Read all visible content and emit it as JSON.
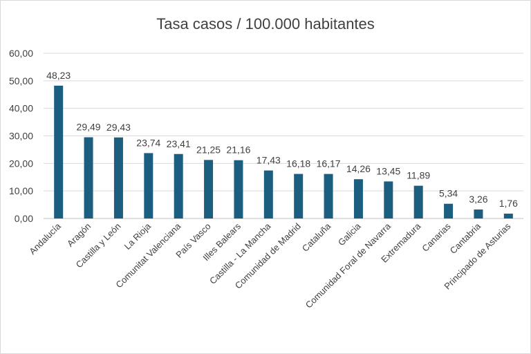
{
  "chart_data": {
    "type": "bar",
    "title": "Tasa casos / 100.000 habitantes",
    "categories": [
      "Andalucía",
      "Aragón",
      "Castilla y León",
      "La Rioja",
      "Comunitat Valenciana",
      "País Vasco",
      "Illes Balears",
      "Castilla - La Mancha",
      "Comunidad de Madrid",
      "Cataluña",
      "Galicia",
      "Comunidad Foral de Navarra",
      "Extremadura",
      "Canarias",
      "Cantabria",
      "Principado de Asturias"
    ],
    "values": [
      48.23,
      29.49,
      29.43,
      23.74,
      23.41,
      21.25,
      21.16,
      17.43,
      16.18,
      16.17,
      14.26,
      13.45,
      11.89,
      5.34,
      3.26,
      1.76
    ],
    "data_labels": [
      "48,23",
      "29,49",
      "29,43",
      "23,74",
      "23,41",
      "21,25",
      "21,16",
      "17,43",
      "16,18",
      "16,17",
      "14,26",
      "13,45",
      "11,89",
      "5,34",
      "3,26",
      "1,76"
    ],
    "y_ticks": [
      0,
      10,
      20,
      30,
      40,
      50,
      60
    ],
    "y_tick_labels": [
      "0,00",
      "10,00",
      "20,00",
      "30,00",
      "40,00",
      "50,00",
      "60,00"
    ],
    "ylim": [
      0,
      60
    ],
    "xlabel": "",
    "ylabel": "",
    "grid": true,
    "legend": "none",
    "bar_color": "#1b5e80"
  }
}
